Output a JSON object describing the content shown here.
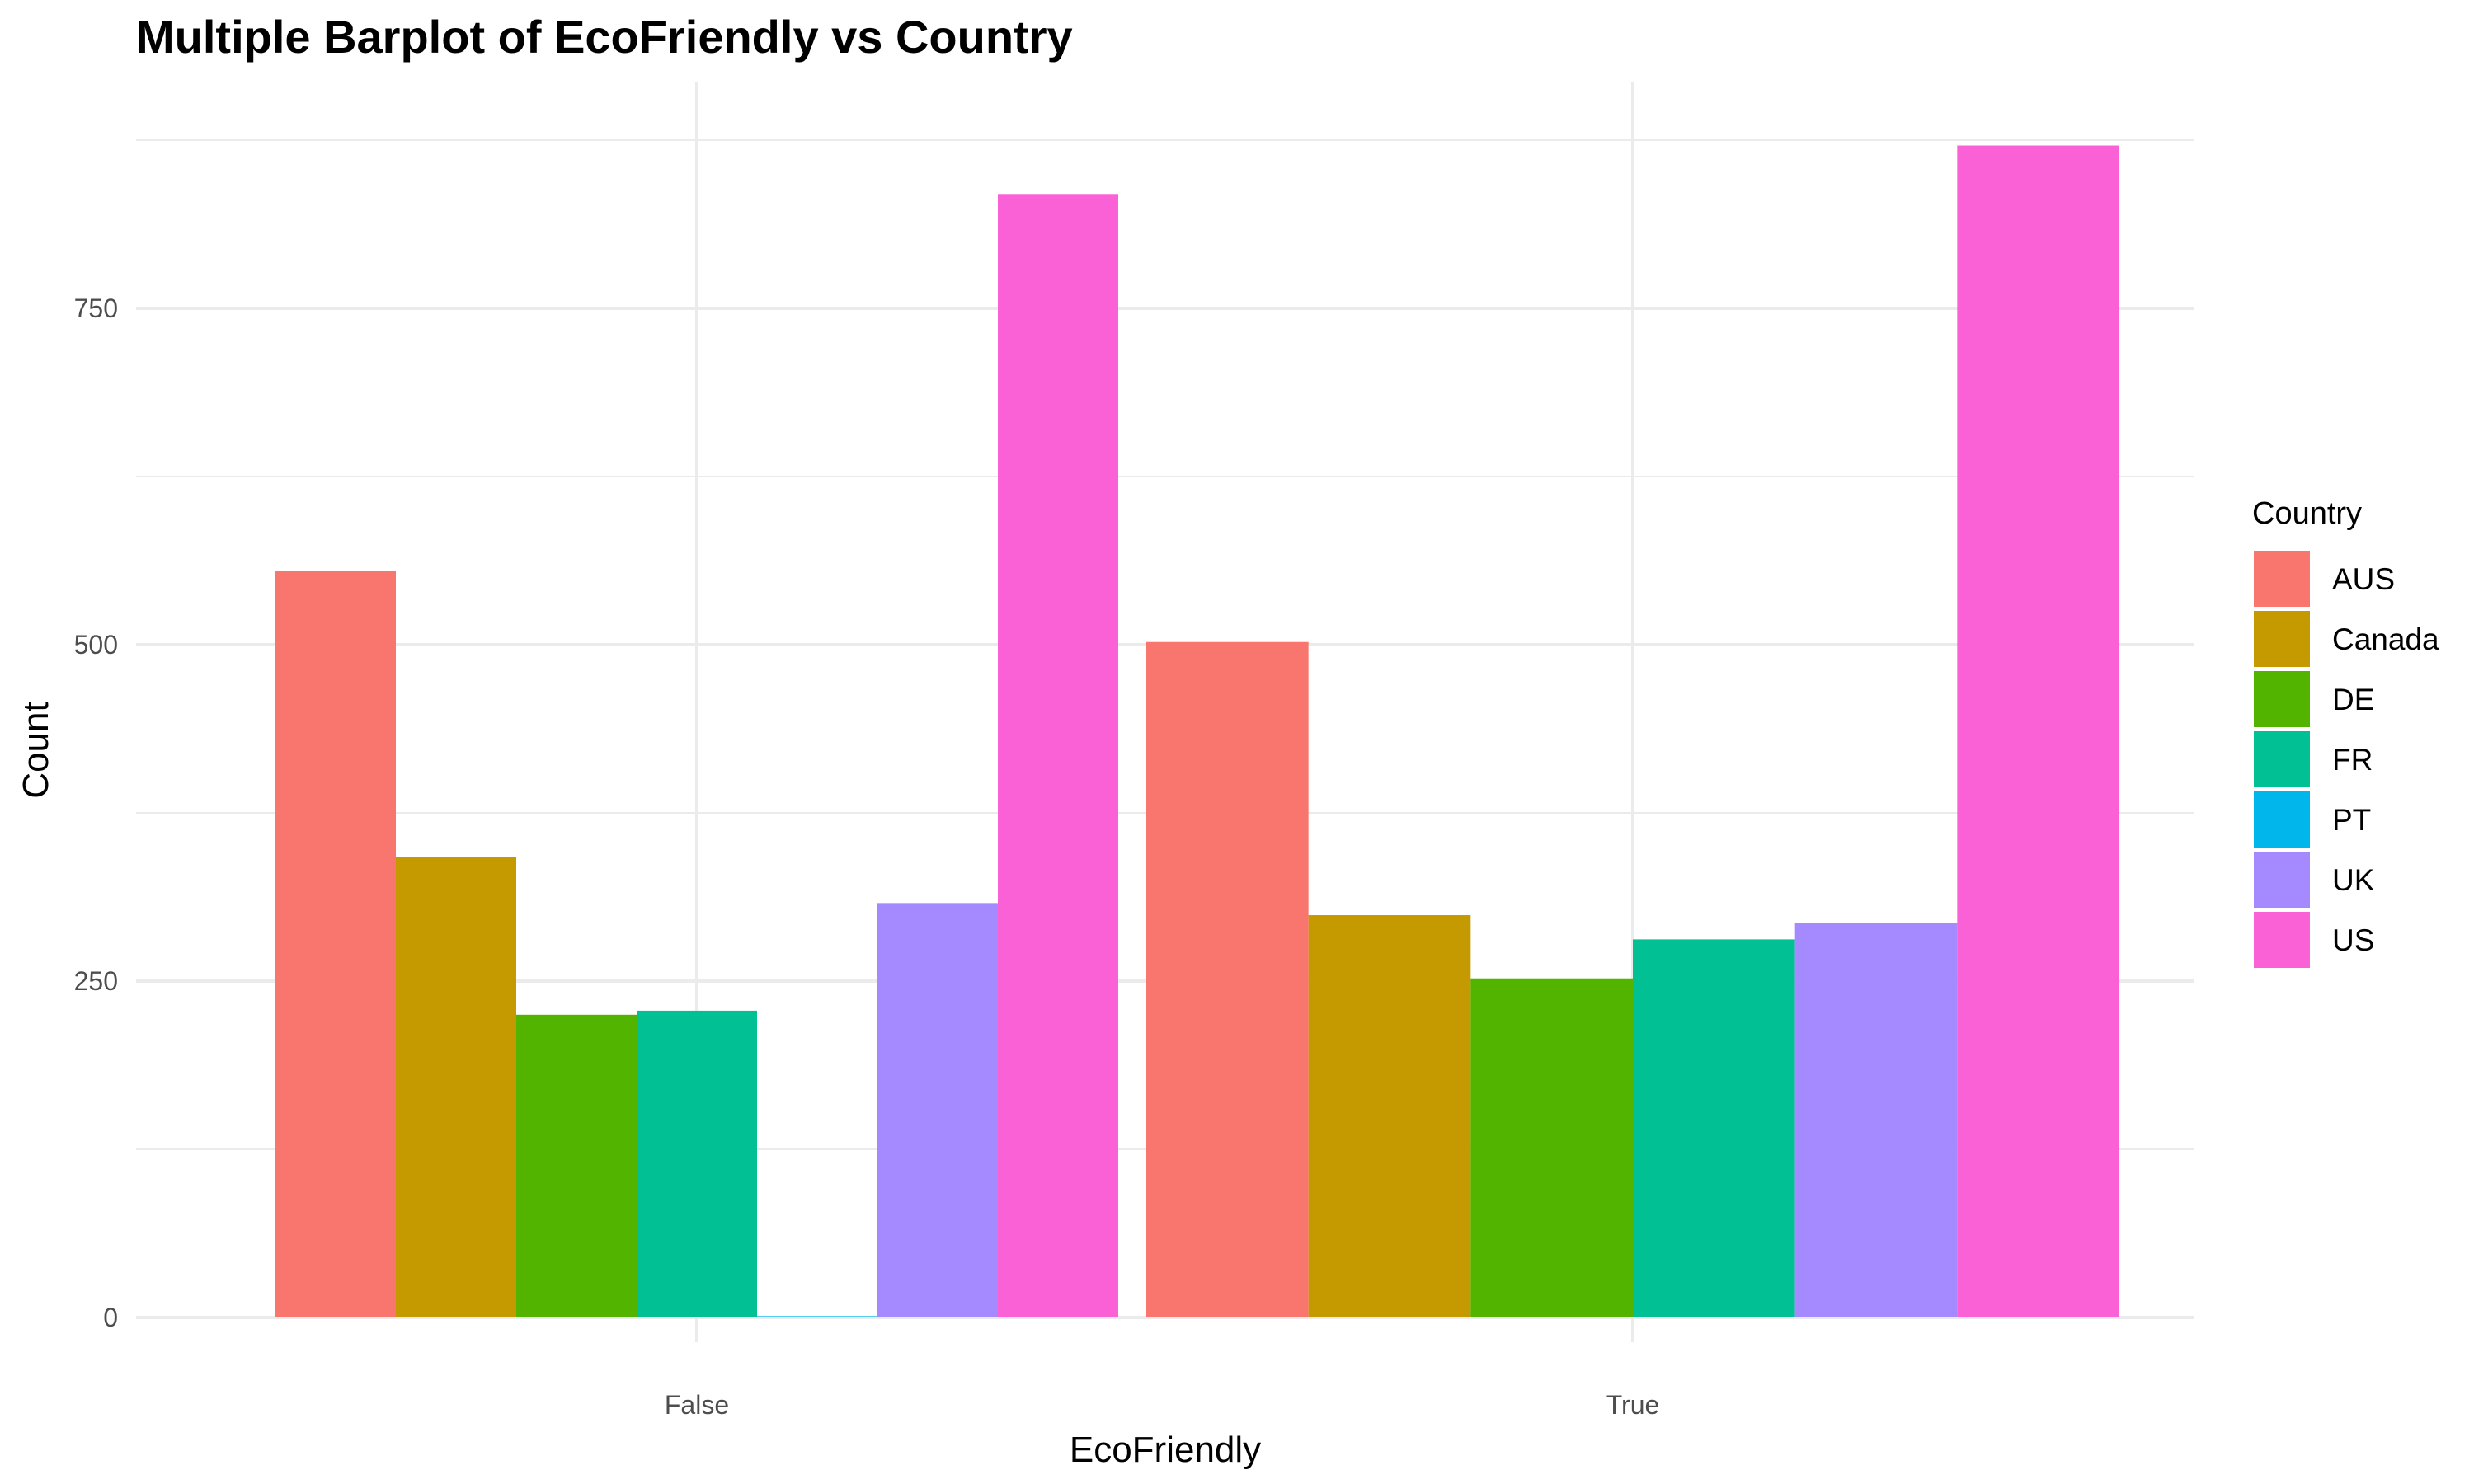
{
  "chart_data": {
    "type": "bar",
    "title": "Multiple Barplot of EcoFriendly vs Country",
    "xlabel": "EcoFriendly",
    "ylabel": "Count",
    "categories": [
      "False",
      "True"
    ],
    "ylim": [
      0,
      915
    ],
    "yticks": [
      0,
      250,
      500,
      750
    ],
    "grid": true,
    "legend": {
      "title": "Country",
      "position": "right"
    },
    "series": [
      {
        "name": "AUS",
        "color": "#F8766D",
        "values": [
          555,
          502
        ]
      },
      {
        "name": "Canada",
        "color": "#C49A00",
        "values": [
          342,
          299
        ]
      },
      {
        "name": "DE",
        "color": "#53B400",
        "values": [
          225,
          252
        ]
      },
      {
        "name": "FR",
        "color": "#00C094",
        "values": [
          228,
          281
        ]
      },
      {
        "name": "PT",
        "color": "#00B6EB",
        "values": [
          1,
          null
        ]
      },
      {
        "name": "UK",
        "color": "#A58AFF",
        "values": [
          308,
          293
        ]
      },
      {
        "name": "US",
        "color": "#FB61D7",
        "values": [
          835,
          871
        ]
      }
    ]
  }
}
